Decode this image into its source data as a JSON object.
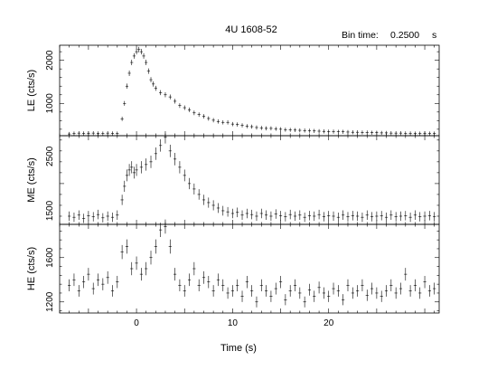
{
  "header": {
    "title": "4U 1608-52",
    "bin_label": "Bin time:",
    "bin_value": "0.2500",
    "bin_unit": "s"
  },
  "chart_data": {
    "type": "scatter",
    "xlabel": "Time (s)",
    "xlim": [
      -8,
      31.5
    ],
    "x_ticks": [
      0,
      10,
      20
    ],
    "panels": [
      {
        "name": "LE",
        "ylabel": "LE  (cts/s)",
        "ylim": [
          250,
          2350
        ],
        "y_ticks": [
          1000,
          2000
        ],
        "points": [
          [
            -7.0,
            290
          ],
          [
            -6.5,
            300
          ],
          [
            -6.0,
            310
          ],
          [
            -5.5,
            305
          ],
          [
            -5.0,
            300
          ],
          [
            -4.5,
            310
          ],
          [
            -4.0,
            305
          ],
          [
            -3.5,
            300
          ],
          [
            -3.0,
            310
          ],
          [
            -2.5,
            305
          ],
          [
            -2.0,
            300
          ],
          [
            -1.5,
            640
          ],
          [
            -1.25,
            1000
          ],
          [
            -1.0,
            1400
          ],
          [
            -0.75,
            1700
          ],
          [
            -0.5,
            1950
          ],
          [
            -0.25,
            2100
          ],
          [
            0.0,
            2200
          ],
          [
            0.25,
            2250
          ],
          [
            0.5,
            2200
          ],
          [
            0.75,
            2100
          ],
          [
            1.0,
            1950
          ],
          [
            1.25,
            1750
          ],
          [
            1.5,
            1550
          ],
          [
            1.75,
            1450
          ],
          [
            2.0,
            1350
          ],
          [
            2.5,
            1250
          ],
          [
            3.0,
            1200
          ],
          [
            3.5,
            1150
          ],
          [
            4.0,
            1050
          ],
          [
            4.5,
            950
          ],
          [
            5.0,
            900
          ],
          [
            5.5,
            850
          ],
          [
            6.0,
            780
          ],
          [
            6.5,
            740
          ],
          [
            7.0,
            700
          ],
          [
            7.5,
            650
          ],
          [
            8.0,
            610
          ],
          [
            8.5,
            580
          ],
          [
            9.0,
            560
          ],
          [
            9.5,
            560
          ],
          [
            10.0,
            520
          ],
          [
            10.5,
            510
          ],
          [
            11.0,
            490
          ],
          [
            11.5,
            470
          ],
          [
            12.0,
            460
          ],
          [
            12.5,
            440
          ],
          [
            13.0,
            430
          ],
          [
            13.5,
            420
          ],
          [
            14.0,
            420
          ],
          [
            14.5,
            410
          ],
          [
            15.0,
            400
          ],
          [
            15.5,
            390
          ],
          [
            16.0,
            385
          ],
          [
            16.5,
            380
          ],
          [
            17.0,
            375
          ],
          [
            17.5,
            370
          ],
          [
            18.0,
            365
          ],
          [
            18.5,
            360
          ],
          [
            19.0,
            355
          ],
          [
            19.5,
            350
          ],
          [
            20.0,
            345
          ],
          [
            20.5,
            345
          ],
          [
            21.0,
            340
          ],
          [
            21.5,
            340
          ],
          [
            22.0,
            335
          ],
          [
            22.5,
            330
          ],
          [
            23.0,
            330
          ],
          [
            23.5,
            325
          ],
          [
            24.0,
            325
          ],
          [
            24.5,
            320
          ],
          [
            25.0,
            320
          ],
          [
            25.5,
            315
          ],
          [
            26.0,
            315
          ],
          [
            26.5,
            310
          ],
          [
            27.0,
            310
          ],
          [
            27.5,
            310
          ],
          [
            28.0,
            305
          ],
          [
            28.5,
            305
          ],
          [
            29.0,
            300
          ],
          [
            29.5,
            300
          ],
          [
            30.0,
            300
          ],
          [
            30.5,
            300
          ],
          [
            31.0,
            300
          ]
        ]
      },
      {
        "name": "ME",
        "ylabel": "ME  (cts/s)",
        "ylim": [
          1250,
          2880
        ],
        "y_ticks": [
          1500,
          2500
        ],
        "points": [
          [
            -7.0,
            1400
          ],
          [
            -6.5,
            1380
          ],
          [
            -6.0,
            1420
          ],
          [
            -5.5,
            1360
          ],
          [
            -5.0,
            1410
          ],
          [
            -4.5,
            1390
          ],
          [
            -4.0,
            1430
          ],
          [
            -3.5,
            1370
          ],
          [
            -3.0,
            1400
          ],
          [
            -2.5,
            1380
          ],
          [
            -2.0,
            1420
          ],
          [
            -1.5,
            1700
          ],
          [
            -1.25,
            1950
          ],
          [
            -1.0,
            2150
          ],
          [
            -0.75,
            2250
          ],
          [
            -0.5,
            2300
          ],
          [
            -0.25,
            2200
          ],
          [
            0.0,
            2250
          ],
          [
            0.5,
            2300
          ],
          [
            1.0,
            2350
          ],
          [
            1.5,
            2400
          ],
          [
            2.0,
            2550
          ],
          [
            2.5,
            2700
          ],
          [
            3.0,
            2850
          ],
          [
            3.5,
            2600
          ],
          [
            4.0,
            2450
          ],
          [
            4.5,
            2300
          ],
          [
            5.0,
            2150
          ],
          [
            5.5,
            2000
          ],
          [
            6.0,
            1900
          ],
          [
            6.5,
            1800
          ],
          [
            7.0,
            1700
          ],
          [
            7.5,
            1650
          ],
          [
            8.0,
            1600
          ],
          [
            8.5,
            1550
          ],
          [
            9.0,
            1500
          ],
          [
            9.5,
            1480
          ],
          [
            10.0,
            1450
          ],
          [
            10.5,
            1470
          ],
          [
            11.0,
            1420
          ],
          [
            11.5,
            1450
          ],
          [
            12.0,
            1430
          ],
          [
            12.5,
            1400
          ],
          [
            13.0,
            1450
          ],
          [
            13.5,
            1420
          ],
          [
            14.0,
            1400
          ],
          [
            14.5,
            1440
          ],
          [
            15.0,
            1410
          ],
          [
            15.5,
            1390
          ],
          [
            16.0,
            1430
          ],
          [
            16.5,
            1400
          ],
          [
            17.0,
            1420
          ],
          [
            17.5,
            1380
          ],
          [
            18.0,
            1410
          ],
          [
            18.5,
            1400
          ],
          [
            19.0,
            1430
          ],
          [
            19.5,
            1390
          ],
          [
            20.0,
            1410
          ],
          [
            20.5,
            1400
          ],
          [
            21.0,
            1380
          ],
          [
            21.5,
            1420
          ],
          [
            22.0,
            1390
          ],
          [
            22.5,
            1410
          ],
          [
            23.0,
            1400
          ],
          [
            23.5,
            1380
          ],
          [
            24.0,
            1420
          ],
          [
            24.5,
            1390
          ],
          [
            25.0,
            1400
          ],
          [
            25.5,
            1410
          ],
          [
            26.0,
            1380
          ],
          [
            26.5,
            1420
          ],
          [
            27.0,
            1390
          ],
          [
            27.5,
            1400
          ],
          [
            28.0,
            1410
          ],
          [
            28.5,
            1380
          ],
          [
            29.0,
            1420
          ],
          [
            29.5,
            1390
          ],
          [
            30.0,
            1400
          ],
          [
            30.5,
            1410
          ],
          [
            31.0,
            1390
          ]
        ]
      },
      {
        "name": "HE",
        "ylabel": "HE  (cts/s)",
        "ylim": [
          1100,
          1900
        ],
        "y_ticks": [
          1200,
          1600
        ],
        "points": [
          [
            -7.0,
            1350
          ],
          [
            -6.5,
            1400
          ],
          [
            -6.0,
            1300
          ],
          [
            -5.5,
            1380
          ],
          [
            -5.0,
            1450
          ],
          [
            -4.5,
            1320
          ],
          [
            -4.0,
            1400
          ],
          [
            -3.5,
            1360
          ],
          [
            -3.0,
            1420
          ],
          [
            -2.5,
            1300
          ],
          [
            -2.0,
            1380
          ],
          [
            -1.5,
            1650
          ],
          [
            -1.0,
            1700
          ],
          [
            -0.5,
            1500
          ],
          [
            0.0,
            1550
          ],
          [
            0.5,
            1450
          ],
          [
            1.0,
            1500
          ],
          [
            1.5,
            1600
          ],
          [
            2.0,
            1700
          ],
          [
            2.5,
            1850
          ],
          [
            3.0,
            1880
          ],
          [
            3.5,
            1700
          ],
          [
            4.0,
            1450
          ],
          [
            4.5,
            1350
          ],
          [
            5.0,
            1300
          ],
          [
            5.5,
            1400
          ],
          [
            6.0,
            1500
          ],
          [
            6.5,
            1350
          ],
          [
            7.0,
            1420
          ],
          [
            7.5,
            1380
          ],
          [
            8.0,
            1300
          ],
          [
            8.5,
            1400
          ],
          [
            9.0,
            1350
          ],
          [
            9.5,
            1280
          ],
          [
            10.0,
            1300
          ],
          [
            10.5,
            1350
          ],
          [
            11.0,
            1250
          ],
          [
            11.5,
            1380
          ],
          [
            12.0,
            1300
          ],
          [
            12.5,
            1200
          ],
          [
            13.0,
            1350
          ],
          [
            13.5,
            1300
          ],
          [
            14.0,
            1250
          ],
          [
            14.5,
            1320
          ],
          [
            15.0,
            1380
          ],
          [
            15.5,
            1220
          ],
          [
            16.0,
            1300
          ],
          [
            16.5,
            1350
          ],
          [
            17.0,
            1280
          ],
          [
            17.5,
            1200
          ],
          [
            18.0,
            1310
          ],
          [
            18.5,
            1250
          ],
          [
            19.0,
            1330
          ],
          [
            19.5,
            1280
          ],
          [
            20.0,
            1250
          ],
          [
            20.5,
            1320
          ],
          [
            21.0,
            1300
          ],
          [
            21.5,
            1220
          ],
          [
            22.0,
            1350
          ],
          [
            22.5,
            1280
          ],
          [
            23.0,
            1300
          ],
          [
            23.5,
            1350
          ],
          [
            24.0,
            1260
          ],
          [
            24.5,
            1320
          ],
          [
            25.0,
            1280
          ],
          [
            25.5,
            1250
          ],
          [
            26.0,
            1300
          ],
          [
            26.5,
            1350
          ],
          [
            27.0,
            1280
          ],
          [
            27.5,
            1320
          ],
          [
            28.0,
            1450
          ],
          [
            28.5,
            1300
          ],
          [
            29.0,
            1350
          ],
          [
            29.5,
            1280
          ],
          [
            30.0,
            1380
          ],
          [
            30.5,
            1300
          ],
          [
            31.0,
            1320
          ]
        ]
      }
    ]
  }
}
